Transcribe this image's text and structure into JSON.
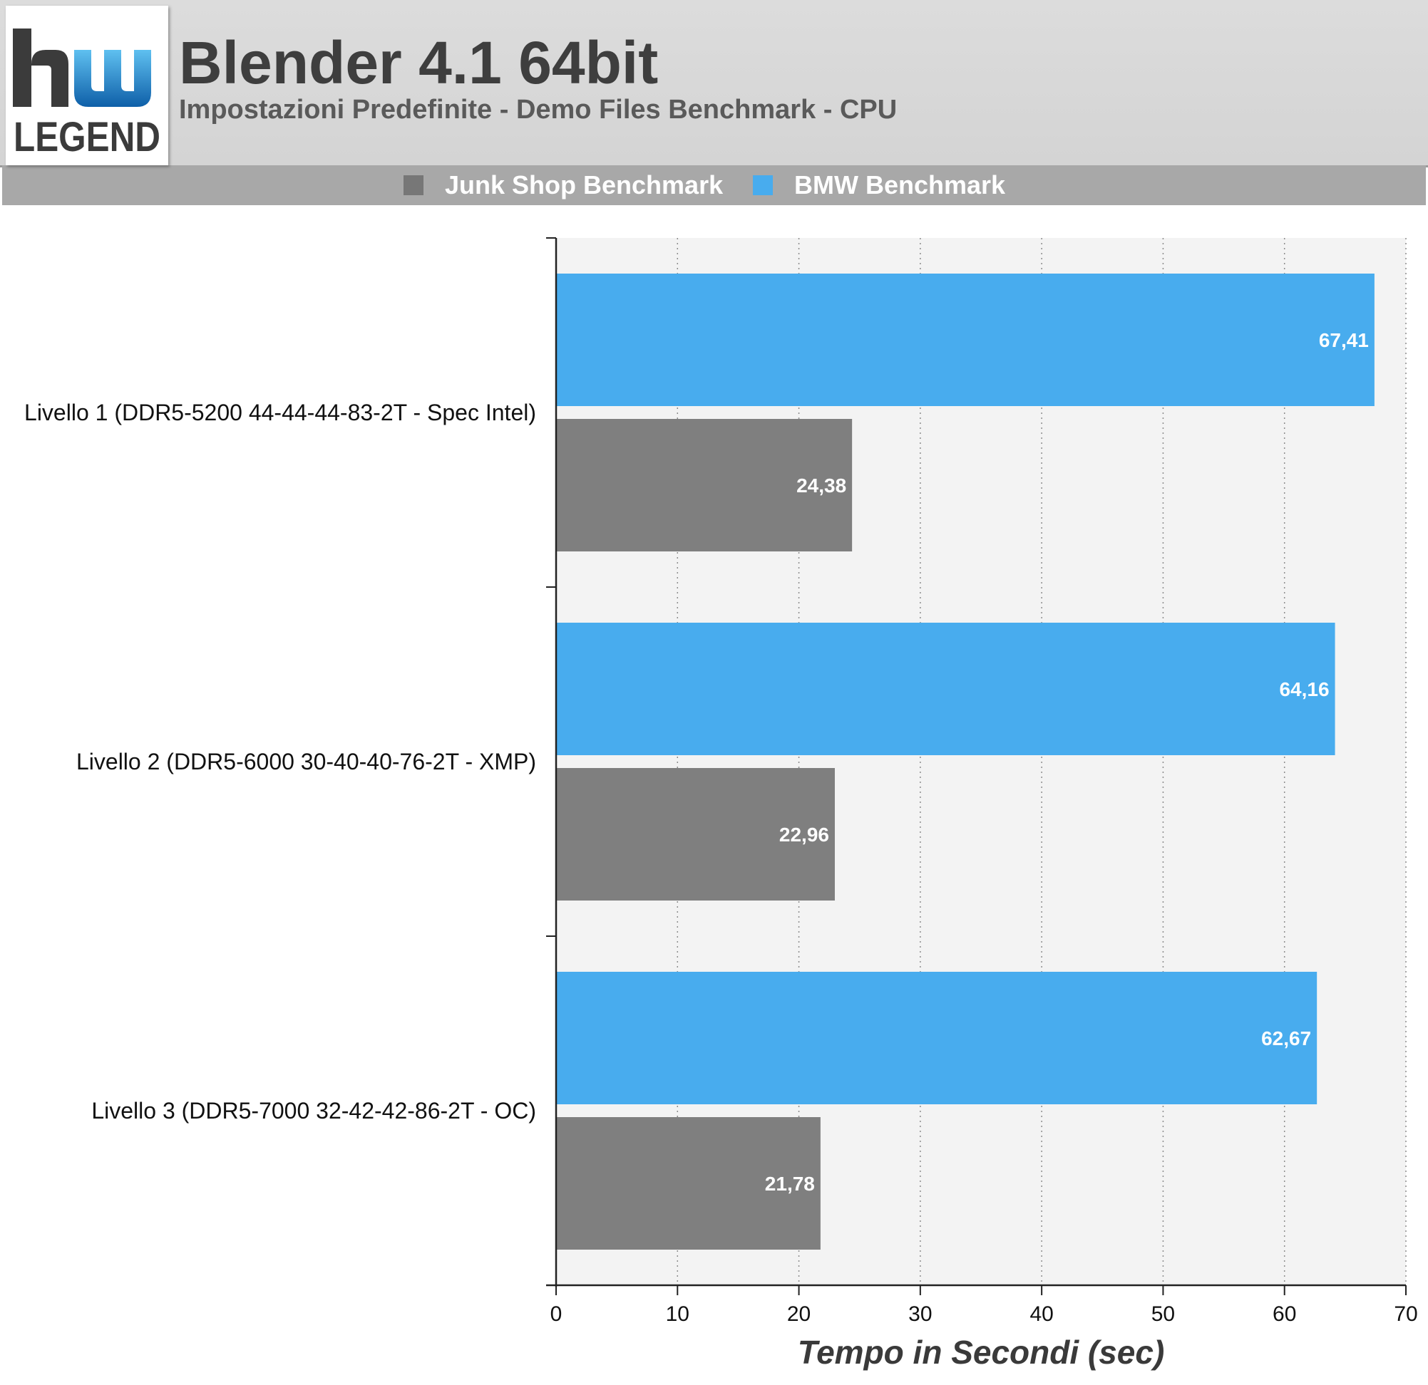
{
  "header": {
    "title": "Blender 4.1 64bit",
    "subtitle": "Impostazioni Predefinite - Demo Files Benchmark - CPU",
    "logo_text": "LEGEND",
    "logo_icon": "hwlegend-logo-icon"
  },
  "colors": {
    "junk_shop": "#7f7f7f",
    "bmw": "#48acee",
    "plot_background": "#f3f3f3",
    "legend_bar": "#a8a8a8"
  },
  "chart_data": {
    "type": "bar",
    "orientation": "horizontal",
    "categories": [
      "Livello 1 (DDR5-5200 44-44-44-83-2T - Spec Intel)",
      "Livello 2 (DDR5-6000 30-40-40-76-2T - XMP)",
      "Livello 3 (DDR5-7000 32-42-42-86-2T - OC)"
    ],
    "series": [
      {
        "name": "BMW Benchmark",
        "values": [
          67.41,
          64.16,
          62.67
        ],
        "labels": [
          "67,41",
          "64,16",
          "62,67"
        ]
      },
      {
        "name": "Junk Shop Benchmark",
        "values": [
          24.38,
          22.96,
          21.78
        ],
        "labels": [
          "24,38",
          "22,96",
          "21,78"
        ]
      }
    ],
    "legend": [
      "Junk Shop Benchmark",
      "BMW Benchmark"
    ],
    "legend_position": "top-center",
    "xlabel": "Tempo in Secondi (sec)",
    "ylabel": "",
    "xlim": [
      0,
      70
    ],
    "xticks": [
      0,
      10,
      20,
      30,
      40,
      50,
      60,
      70
    ],
    "grid": "vertical-dotted"
  }
}
